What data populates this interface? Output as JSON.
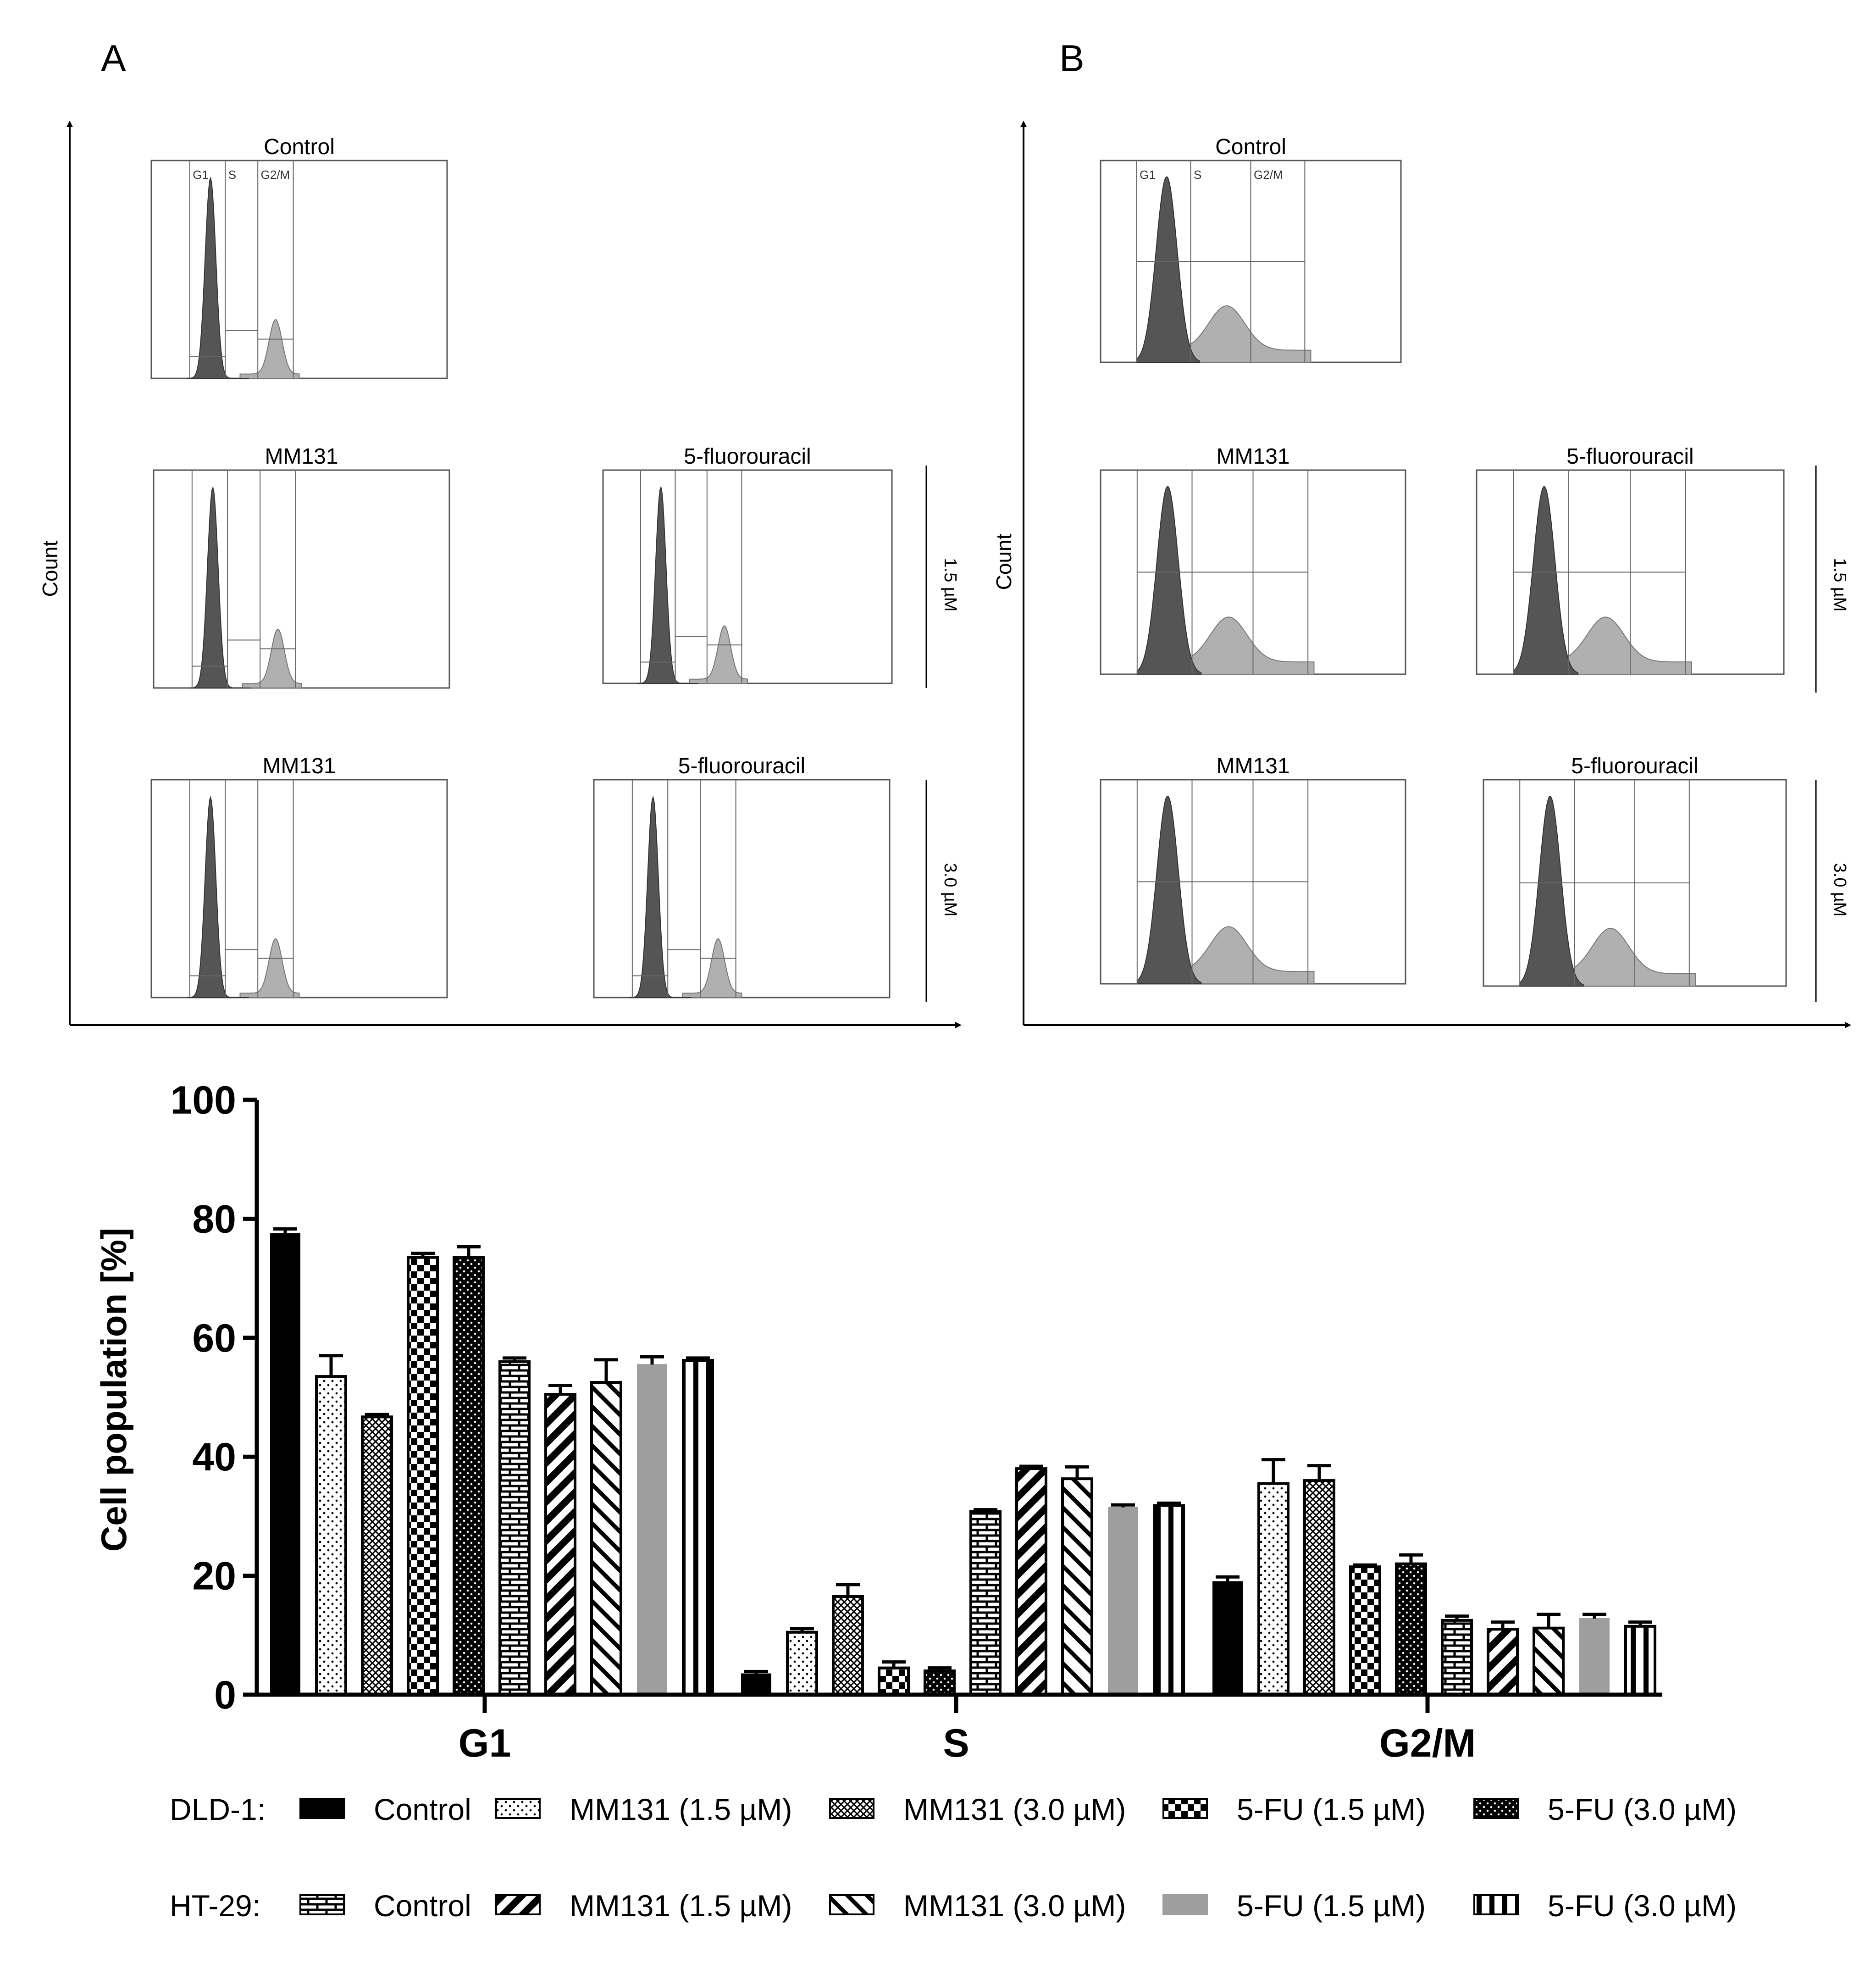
{
  "panels": {
    "A": {
      "label": "A",
      "y_axis_label": "Count",
      "dose_labels": [
        "1.5 µM",
        "3.0 µM"
      ],
      "histograms": [
        {
          "title": "Control",
          "gate_labels": [
            "G1",
            "S",
            "G2/M"
          ]
        },
        {
          "title": "MM131"
        },
        {
          "title": "5-fluorouracil"
        },
        {
          "title": "MM131"
        },
        {
          "title": "5-fluorouracil"
        }
      ]
    },
    "B": {
      "label": "B",
      "y_axis_label": "Count",
      "dose_labels": [
        "1.5 µM",
        "3.0 µM"
      ],
      "histograms": [
        {
          "title": "Control",
          "gate_labels": [
            "G1",
            "S",
            "G2/M"
          ]
        },
        {
          "title": "MM131"
        },
        {
          "title": "5-fluorouracil"
        },
        {
          "title": "MM131"
        },
        {
          "title": "5-fluorouracil"
        }
      ]
    }
  },
  "chart_data": {
    "type": "bar",
    "title": "",
    "xlabel": "",
    "ylabel": "Cell population [%]",
    "ylim": [
      0,
      100
    ],
    "yticks": [
      0,
      20,
      40,
      60,
      80,
      100
    ],
    "categories": [
      "G1",
      "S",
      "G2/M"
    ],
    "legend_groups": [
      {
        "label": "DLD-1:",
        "series": [
          0,
          1,
          2,
          3,
          4
        ]
      },
      {
        "label": "HT-29:",
        "series": [
          5,
          6,
          7,
          8,
          9
        ]
      }
    ],
    "series": [
      {
        "name": "Control",
        "group": "DLD-1",
        "pattern": "solid-black",
        "values": [
          77.5,
          3.5,
          19
        ],
        "errors": [
          0.8,
          0.4,
          0.8
        ]
      },
      {
        "name": "MM131 (1.5 µM)",
        "group": "DLD-1",
        "pattern": "dots",
        "values": [
          53.5,
          10.5,
          35.5
        ],
        "errors": [
          3.5,
          0.6,
          4
        ]
      },
      {
        "name": "MM131 (3.0 µM)",
        "group": "DLD-1",
        "pattern": "crosshatch",
        "values": [
          46.7,
          16.5,
          36
        ],
        "errors": [
          0.4,
          2,
          2.5
        ]
      },
      {
        "name": "5-FU (1.5 µM)",
        "group": "DLD-1",
        "pattern": "checker",
        "values": [
          73.5,
          4.5,
          21.5
        ],
        "errors": [
          0.7,
          1,
          0.3
        ]
      },
      {
        "name": "5-FU (3.0 µM)",
        "group": "DLD-1",
        "pattern": "black-dots",
        "values": [
          73.5,
          4,
          22
        ],
        "errors": [
          1.8,
          0.5,
          1.5
        ]
      },
      {
        "name": "Control",
        "group": "HT-29",
        "pattern": "brick",
        "values": [
          56,
          30.8,
          12.5
        ],
        "errors": [
          0.6,
          0.3,
          0.7
        ]
      },
      {
        "name": "MM131 (1.5 µM)",
        "group": "HT-29",
        "pattern": "diag-back",
        "values": [
          50.5,
          38,
          11
        ],
        "errors": [
          1.5,
          0.4,
          1.2
        ]
      },
      {
        "name": "MM131 (3.0 µM)",
        "group": "HT-29",
        "pattern": "diag-fwd",
        "values": [
          52.5,
          36.3,
          11.2
        ],
        "errors": [
          3.8,
          2,
          2.3
        ]
      },
      {
        "name": "5-FU (1.5 µM)",
        "group": "HT-29",
        "pattern": "solid-gray",
        "values": [
          55.5,
          31.5,
          12.8
        ],
        "errors": [
          1.3,
          0.4,
          0.7
        ]
      },
      {
        "name": "5-FU (3.0 µM)",
        "group": "HT-29",
        "pattern": "stripes-vertical",
        "values": [
          56.2,
          31.8,
          11.5
        ],
        "errors": [
          0.4,
          0.4,
          0.7
        ]
      }
    ]
  }
}
